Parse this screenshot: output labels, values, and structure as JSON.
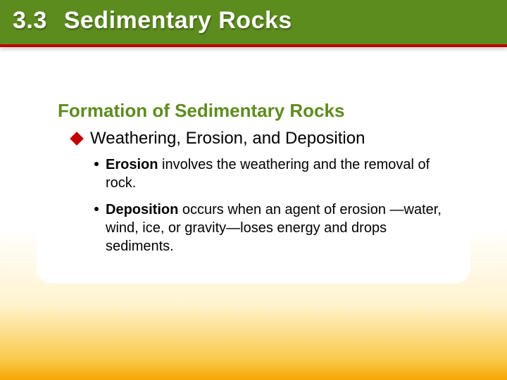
{
  "colors": {
    "header_bg": "#5d8c1e",
    "header_underline": "#c00000",
    "header_text": "#ffffff",
    "section_title": "#5d8c1e",
    "diamond": "#c00000",
    "body_text": "#000000",
    "card_bg": "#ffffff",
    "gradient_top": "#ffffff",
    "gradient_mid": "#fff3d0",
    "gradient_low": "#f9c846",
    "gradient_bottom": "#f7a600"
  },
  "typography": {
    "header_fontsize": 34,
    "section_title_fontsize": 26,
    "subheading_fontsize": 24,
    "bullet_fontsize": 20,
    "font_family": "Arial"
  },
  "header": {
    "number": "3.3",
    "title": "Sedimentary Rocks"
  },
  "section_title": "Formation of Sedimentary Rocks",
  "subheading": "Weathering, Erosion, and Deposition",
  "bullets": [
    {
      "term": "Erosion",
      "rest": " involves the weathering and the removal of rock."
    },
    {
      "term": "Deposition",
      "rest": " occurs when an agent of erosion —water, wind, ice, or gravity—loses energy and drops sediments."
    }
  ]
}
